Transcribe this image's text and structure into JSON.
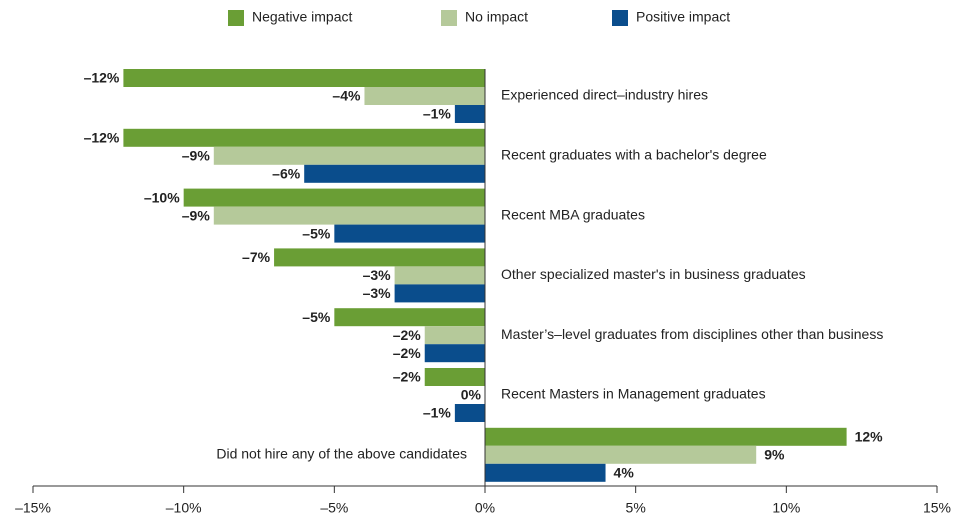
{
  "chart_data": {
    "type": "hbar",
    "categories": [
      "Experienced direct–industry hires",
      "Recent graduates with a bachelor's degree",
      "Recent MBA graduates",
      "Other specialized master's in business graduates",
      "Master’s–level graduates from disciplines other than business",
      "Recent Masters in Management graduates",
      "Did not hire any of the above candidates"
    ],
    "series": [
      {
        "name": "Negative impact",
        "color": "#6a9e35",
        "values": [
          -12,
          -12,
          -10,
          -7,
          -5,
          -2,
          12
        ],
        "value_labels": [
          "–12%",
          "–12%",
          "–10%",
          "–7%",
          "–5%",
          "–2%",
          "12%"
        ]
      },
      {
        "name": "No impact",
        "color": "#b5c99a",
        "values": [
          -4,
          -9,
          -9,
          -3,
          -2,
          0,
          9
        ],
        "value_labels": [
          "–4%",
          "–9%",
          "–9%",
          "–3%",
          "–2%",
          "0%",
          "9%"
        ]
      },
      {
        "name": "Positive impact",
        "color": "#0a4d8c",
        "values": [
          -1,
          -6,
          -5,
          -3,
          -2,
          -1,
          4
        ],
        "value_labels": [
          "–1%",
          "–6%",
          "–5%",
          "–3%",
          "–2%",
          "–1%",
          "4%"
        ]
      }
    ],
    "xlim": [
      -15,
      15
    ],
    "xticks": [
      {
        "value": -15,
        "label": "–15%"
      },
      {
        "value": -10,
        "label": "–10%"
      },
      {
        "value": -5,
        "label": "–5%"
      },
      {
        "value": 0,
        "label": "0%"
      },
      {
        "value": 5,
        "label": "5%"
      },
      {
        "value": 10,
        "label": "10%"
      },
      {
        "value": 15,
        "label": "15%"
      }
    ],
    "legend": "top"
  }
}
